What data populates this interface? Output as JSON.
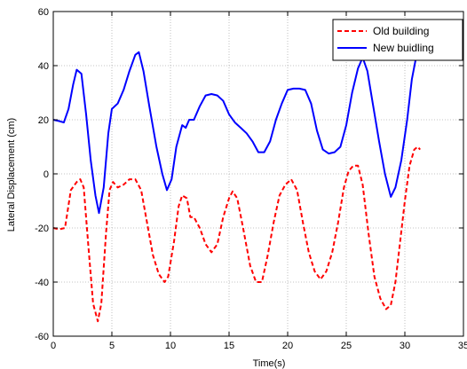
{
  "chart_data": {
    "type": "line",
    "title": "",
    "xlabel": "Time(s)",
    "ylabel": "Lateral Displacement (cm)",
    "xlim": [
      0,
      35
    ],
    "ylim": [
      -60,
      60
    ],
    "xticks": [
      0,
      5,
      10,
      15,
      20,
      25,
      30,
      35
    ],
    "yticks": [
      -60,
      -40,
      -20,
      0,
      20,
      40,
      60
    ],
    "grid": true,
    "legend_position": "top-right",
    "series": [
      {
        "name": "Old building",
        "color": "#ff0000",
        "style": "dashed",
        "points": [
          [
            0,
            -20
          ],
          [
            0.5,
            -20.5
          ],
          [
            1,
            -20
          ],
          [
            1.5,
            -6
          ],
          [
            2,
            -3
          ],
          [
            2.3,
            -2
          ],
          [
            2.6,
            -5
          ],
          [
            3,
            -27
          ],
          [
            3.4,
            -48
          ],
          [
            3.8,
            -54.5
          ],
          [
            4.1,
            -48
          ],
          [
            4.5,
            -22
          ],
          [
            4.8,
            -6
          ],
          [
            5.1,
            -3
          ],
          [
            5.5,
            -5
          ],
          [
            6,
            -4
          ],
          [
            6.5,
            -2
          ],
          [
            7,
            -2
          ],
          [
            7.5,
            -6
          ],
          [
            8,
            -18
          ],
          [
            8.5,
            -30
          ],
          [
            9,
            -37
          ],
          [
            9.5,
            -40
          ],
          [
            9.8,
            -38
          ],
          [
            10.3,
            -25
          ],
          [
            10.7,
            -12
          ],
          [
            11,
            -8
          ],
          [
            11.4,
            -9
          ],
          [
            11.7,
            -16
          ],
          [
            12,
            -16
          ],
          [
            12.5,
            -20
          ],
          [
            13,
            -26
          ],
          [
            13.5,
            -29
          ],
          [
            14,
            -26
          ],
          [
            14.5,
            -16
          ],
          [
            15,
            -9
          ],
          [
            15.3,
            -6.5
          ],
          [
            15.7,
            -9
          ],
          [
            16.2,
            -20
          ],
          [
            16.8,
            -34
          ],
          [
            17.3,
            -40
          ],
          [
            17.8,
            -40
          ],
          [
            18.3,
            -30
          ],
          [
            18.8,
            -18
          ],
          [
            19.3,
            -8
          ],
          [
            19.8,
            -4
          ],
          [
            20.3,
            -2
          ],
          [
            20.8,
            -6
          ],
          [
            21.3,
            -18
          ],
          [
            21.8,
            -29
          ],
          [
            22.3,
            -36
          ],
          [
            22.8,
            -39
          ],
          [
            23.3,
            -36
          ],
          [
            23.8,
            -29
          ],
          [
            24.3,
            -18
          ],
          [
            24.8,
            -5
          ],
          [
            25.2,
            1
          ],
          [
            25.6,
            3
          ],
          [
            26,
            3
          ],
          [
            26.4,
            -4
          ],
          [
            26.9,
            -22
          ],
          [
            27.4,
            -38
          ],
          [
            27.9,
            -46
          ],
          [
            28.4,
            -50
          ],
          [
            28.8,
            -48.5
          ],
          [
            29.2,
            -40
          ],
          [
            29.6,
            -25
          ],
          [
            30,
            -10
          ],
          [
            30.4,
            3
          ],
          [
            30.8,
            9
          ],
          [
            31.1,
            10
          ],
          [
            31.3,
            9
          ]
        ]
      },
      {
        "name": "New buidling",
        "color": "#0000ff",
        "style": "solid",
        "points": [
          [
            0,
            20
          ],
          [
            0.5,
            19.5
          ],
          [
            0.9,
            19
          ],
          [
            1.3,
            24
          ],
          [
            1.7,
            33
          ],
          [
            2,
            38.5
          ],
          [
            2.4,
            37
          ],
          [
            2.8,
            22
          ],
          [
            3.2,
            5
          ],
          [
            3.6,
            -8
          ],
          [
            3.9,
            -14.5
          ],
          [
            4.3,
            -5
          ],
          [
            4.7,
            15
          ],
          [
            5,
            24
          ],
          [
            5.5,
            26
          ],
          [
            6,
            31
          ],
          [
            6.5,
            38
          ],
          [
            7,
            44
          ],
          [
            7.3,
            45
          ],
          [
            7.7,
            38
          ],
          [
            8.2,
            25
          ],
          [
            8.8,
            10
          ],
          [
            9.3,
            0
          ],
          [
            9.7,
            -6
          ],
          [
            10.1,
            -2
          ],
          [
            10.5,
            10
          ],
          [
            11,
            18
          ],
          [
            11.3,
            17
          ],
          [
            11.6,
            20
          ],
          [
            12,
            20
          ],
          [
            12.5,
            25
          ],
          [
            13,
            29
          ],
          [
            13.5,
            29.5
          ],
          [
            14,
            29
          ],
          [
            14.5,
            27
          ],
          [
            15,
            22
          ],
          [
            15.5,
            19
          ],
          [
            16,
            17
          ],
          [
            16.5,
            15
          ],
          [
            17,
            12
          ],
          [
            17.5,
            8
          ],
          [
            18,
            8
          ],
          [
            18.5,
            12
          ],
          [
            19,
            20
          ],
          [
            19.5,
            26
          ],
          [
            20,
            31
          ],
          [
            20.5,
            31.5
          ],
          [
            21,
            31.5
          ],
          [
            21.5,
            31
          ],
          [
            22,
            26
          ],
          [
            22.5,
            16
          ],
          [
            23,
            9
          ],
          [
            23.5,
            7.5
          ],
          [
            24,
            8
          ],
          [
            24.5,
            10
          ],
          [
            25,
            18
          ],
          [
            25.5,
            30
          ],
          [
            26,
            39
          ],
          [
            26.4,
            43
          ],
          [
            26.8,
            38
          ],
          [
            27.3,
            25
          ],
          [
            27.8,
            12
          ],
          [
            28.3,
            0
          ],
          [
            28.8,
            -8.5
          ],
          [
            29.2,
            -5
          ],
          [
            29.7,
            5
          ],
          [
            30.2,
            20
          ],
          [
            30.6,
            35
          ],
          [
            31,
            44
          ],
          [
            31.2,
            48
          ]
        ]
      }
    ]
  }
}
